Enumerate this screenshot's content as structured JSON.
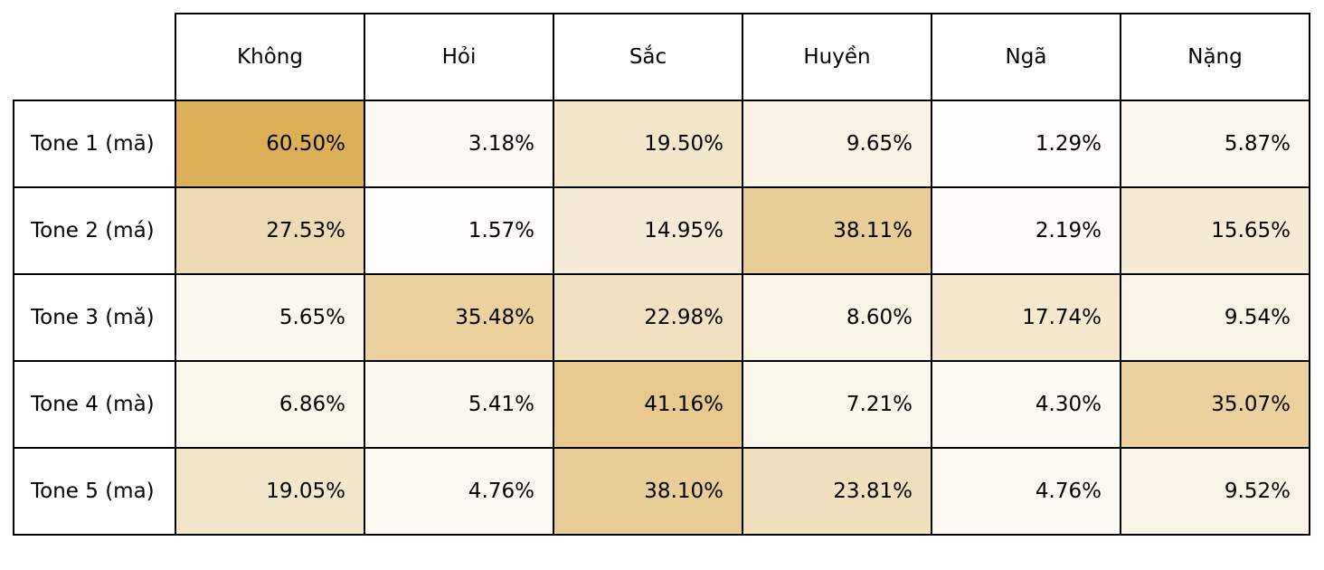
{
  "chart_data": {
    "type": "heatmap",
    "columns": [
      "Không",
      "Hỏi",
      "Sắc",
      "Huyền",
      "Ngã",
      "Nặng"
    ],
    "rows": [
      "Tone 1 (mā)",
      "Tone 2 (má)",
      "Tone 3 (mǎ)",
      "Tone 4 (mà)",
      "Tone 5 (ma)"
    ],
    "values": [
      [
        60.5,
        3.18,
        19.5,
        9.65,
        1.29,
        5.87
      ],
      [
        27.53,
        1.57,
        14.95,
        38.11,
        2.19,
        15.65
      ],
      [
        5.65,
        35.48,
        22.98,
        8.6,
        17.74,
        9.54
      ],
      [
        6.86,
        5.41,
        41.16,
        7.21,
        4.3,
        35.07
      ],
      [
        19.05,
        4.76,
        38.1,
        23.81,
        4.76,
        9.52
      ]
    ],
    "labels": [
      [
        "60.50%",
        "3.18%",
        "19.50%",
        "9.65%",
        "1.29%",
        "5.87%"
      ],
      [
        "27.53%",
        "1.57%",
        "14.95%",
        "38.11%",
        "2.19%",
        "15.65%"
      ],
      [
        "5.65%",
        "35.48%",
        "22.98%",
        "8.60%",
        "17.74%",
        "9.54%"
      ],
      [
        "6.86%",
        "5.41%",
        "41.16%",
        "7.21%",
        "4.30%",
        "35.07%"
      ],
      [
        "19.05%",
        "4.76%",
        "38.10%",
        "23.81%",
        "4.76%",
        "9.52%"
      ]
    ],
    "color_scale": {
      "low": "#ffffff",
      "high": "#dcb058"
    }
  }
}
